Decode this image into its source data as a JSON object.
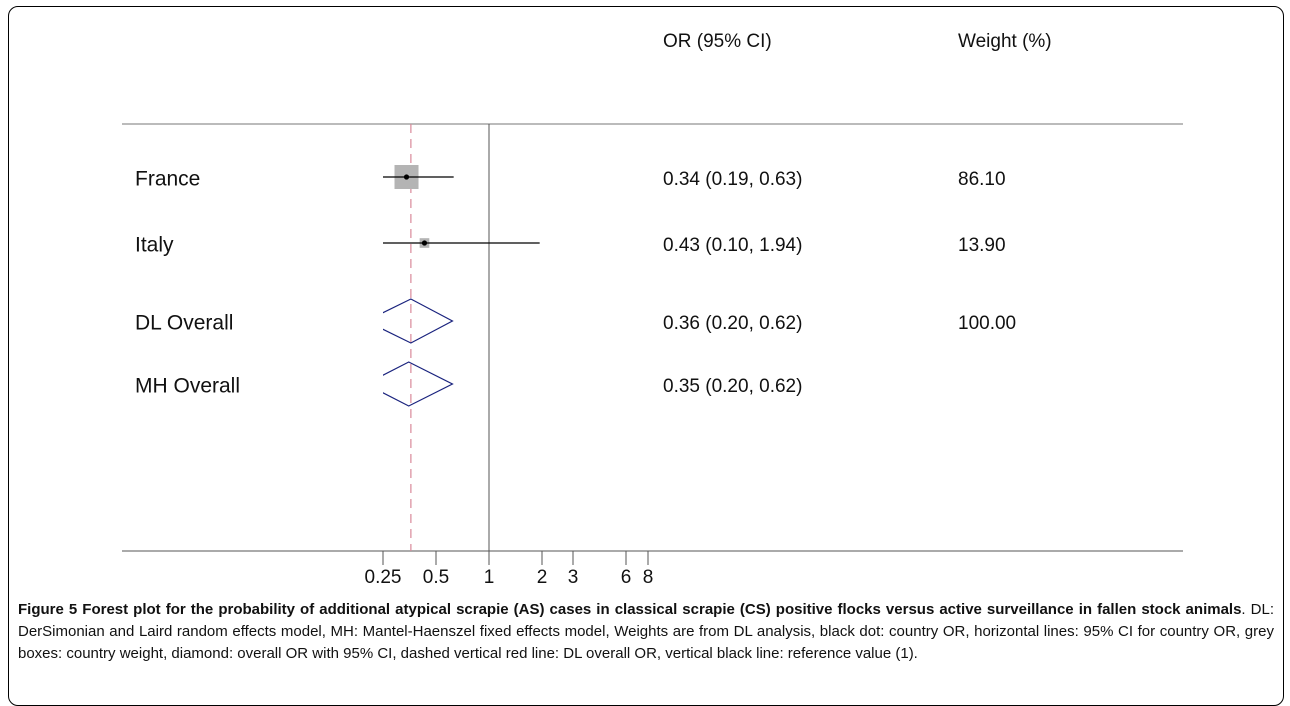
{
  "chart_data": {
    "type": "forest",
    "columns": [
      "OR (95% CI)",
      "Weight (%)"
    ],
    "log_scale": true,
    "reference_value": 1,
    "xlim": [
      0.25,
      8
    ],
    "xticks": [
      0.25,
      0.5,
      1,
      2,
      3,
      6,
      8
    ],
    "box_color": "#b4b4b4",
    "diamond_color": "#1a237e",
    "dashed_line_color": "#d98a99",
    "studies": [
      {
        "label": "France",
        "or": 0.34,
        "ci_low": 0.19,
        "ci_high": 0.63,
        "or_label": "0.34 (0.19, 0.63)",
        "weight": 86.1,
        "weight_label": "86.10"
      },
      {
        "label": "Italy",
        "or": 0.43,
        "ci_low": 0.1,
        "ci_high": 1.94,
        "or_label": "0.43 (0.10, 1.94)",
        "weight": 13.9,
        "weight_label": "13.90"
      }
    ],
    "overall": [
      {
        "label": "DL Overall",
        "or": 0.36,
        "ci_low": 0.2,
        "ci_high": 0.62,
        "or_label": "0.36 (0.20, 0.62)",
        "weight": 100,
        "weight_label": "100.00"
      },
      {
        "label": "MH Overall",
        "or": 0.35,
        "ci_low": 0.2,
        "ci_high": 0.62,
        "or_label": "0.35 (0.20, 0.62)"
      }
    ]
  },
  "caption": {
    "bold": "Figure 5 Forest plot for the probability of additional atypical scrapie (AS) cases in classical scrapie (CS) positive flocks versus active surveillance in fallen stock animals",
    "text": ". DL: DerSimonian and Laird random effects model, MH: Mantel-Haenszel fixed effects model, Weights are from DL analysis, black dot: country OR, horizontal lines: 95% CI for country OR, grey boxes: country weight, diamond: overall OR with 95% CI, dashed vertical red line: DL overall OR, vertical black line: reference value (1)."
  }
}
